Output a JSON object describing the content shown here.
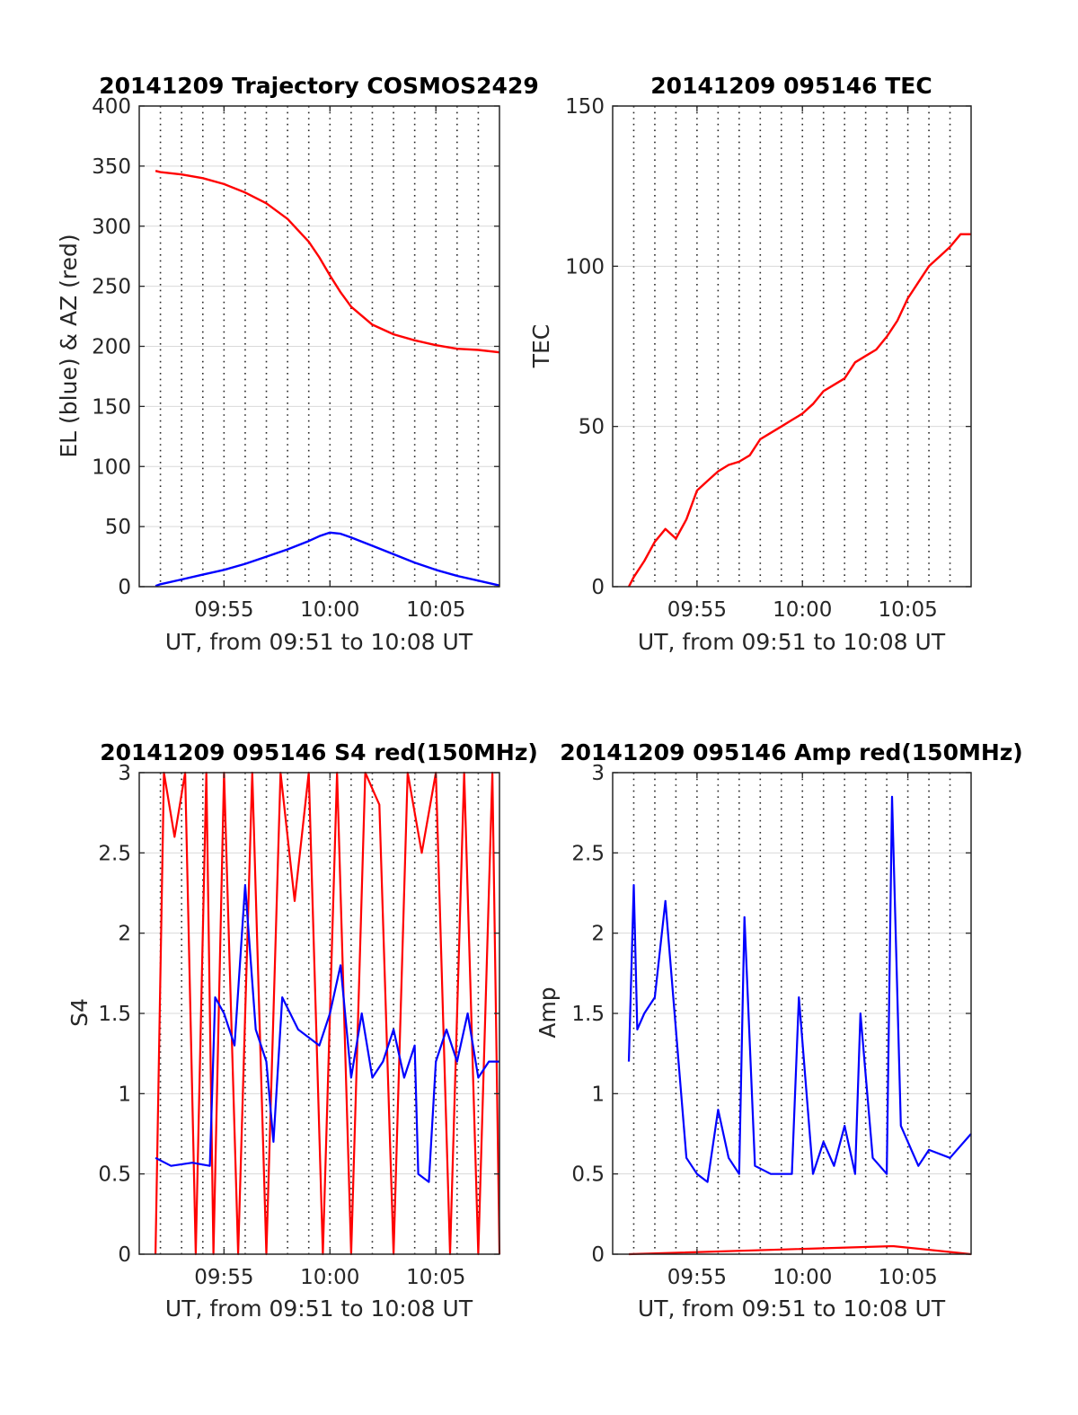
{
  "figure": {
    "background": "#ffffff",
    "colors": {
      "red": "#ff0000",
      "blue": "#0000ff",
      "grid": "#262626",
      "axis": "#262626"
    }
  },
  "chart_data": [
    {
      "id": "trajectory",
      "type": "line",
      "title": "20141209 Trajectory COSMOS2429",
      "xlabel": "UT, from 09:51 to 10:08 UT",
      "ylabel": "EL (blue) & AZ (red)",
      "xlim": [
        "09:51",
        "10:08"
      ],
      "ylim": [
        0,
        400
      ],
      "yticks": [
        0,
        50,
        100,
        150,
        200,
        250,
        300,
        350,
        400
      ],
      "xticks": [
        "09:55",
        "10:00",
        "10:05"
      ],
      "grid": "major solid y, dotted x every minute",
      "legend": "none",
      "series": [
        {
          "color": "#ff0000",
          "x": [
            "09:51:46",
            "09:52",
            "09:53",
            "09:54",
            "09:55",
            "09:56",
            "09:57",
            "09:58",
            "09:59",
            "09:59:30",
            "10:00",
            "10:00:30",
            "10:01",
            "10:02",
            "10:03",
            "10:04",
            "10:05",
            "10:06",
            "10:07",
            "10:08"
          ],
          "y": [
            346,
            345,
            343,
            340,
            335,
            328,
            319,
            306,
            287,
            274,
            259,
            245,
            233,
            218,
            210,
            205,
            201,
            198,
            197,
            195
          ]
        },
        {
          "color": "#0000ff",
          "x": [
            "09:51:46",
            "09:52",
            "09:53",
            "09:54",
            "09:55",
            "09:56",
            "09:57",
            "09:58",
            "09:59",
            "09:59:30",
            "10:00",
            "10:00:30",
            "10:01",
            "10:02",
            "10:03",
            "10:04",
            "10:05",
            "10:06",
            "10:07",
            "10:08"
          ],
          "y": [
            0.5,
            2,
            6,
            10,
            14,
            19,
            25,
            31,
            38,
            42,
            45,
            44,
            41,
            34,
            27,
            20,
            14,
            9,
            5,
            1
          ]
        }
      ]
    },
    {
      "id": "tec",
      "type": "line",
      "title": "20141209 095146 TEC",
      "xlabel": "UT, from 09:51 to 10:08 UT",
      "ylabel": "TEC",
      "xlim": [
        "09:51",
        "10:08"
      ],
      "ylim": [
        0,
        150
      ],
      "yticks": [
        0,
        50,
        100,
        150
      ],
      "xticks": [
        "09:55",
        "10:00",
        "10:05"
      ],
      "grid": "major solid y, dotted x every minute",
      "legend": "none",
      "series": [
        {
          "color": "#ff0000",
          "x": [
            "09:51:46",
            "09:52",
            "09:52:30",
            "09:53",
            "09:53:30",
            "09:54",
            "09:54:30",
            "09:55",
            "09:55:30",
            "09:56",
            "09:56:30",
            "09:57",
            "09:57:30",
            "09:58",
            "09:58:30",
            "09:59",
            "09:59:30",
            "10:00",
            "10:00:30",
            "10:01",
            "10:01:30",
            "10:02",
            "10:02:30",
            "10:03",
            "10:03:30",
            "10:04",
            "10:04:30",
            "10:05",
            "10:05:30",
            "10:06",
            "10:06:30",
            "10:07",
            "10:07:30",
            "10:08"
          ],
          "y": [
            0,
            3,
            8,
            14,
            18,
            15,
            21,
            30,
            33,
            36,
            38,
            39,
            41,
            46,
            48,
            50,
            52,
            54,
            57,
            61,
            63,
            65,
            70,
            72,
            74,
            78,
            83,
            90,
            95,
            100,
            103,
            106,
            110,
            110
          ]
        }
      ]
    },
    {
      "id": "s4",
      "type": "line",
      "title": "20141209 095146 S4 red(150MHz)",
      "xlabel": "UT, from 09:51 to 10:08 UT",
      "ylabel": "S4",
      "xlim": [
        "09:51",
        "10:08"
      ],
      "ylim": [
        0,
        3
      ],
      "yticks": [
        0,
        0.5,
        1,
        1.5,
        2,
        2.5,
        3
      ],
      "xticks": [
        "09:55",
        "10:00",
        "10:05"
      ],
      "grid": "major solid y, dotted x every minute",
      "legend": "none",
      "series": [
        {
          "color": "#ff0000",
          "note_visible": "rapid spikes between 0 and above 3",
          "x": [
            "09:51:46",
            "09:52:10",
            "09:52:40",
            "09:53:10",
            "09:53:40",
            "09:54:10",
            "09:54:30",
            "09:55:00",
            "09:55:40",
            "09:56:20",
            "09:57:00",
            "09:57:40",
            "09:58:20",
            "09:59:00",
            "09:59:40",
            "10:00:20",
            "10:01:00",
            "10:01:40",
            "10:02:20",
            "10:03:00",
            "10:03:40",
            "10:04:20",
            "10:05:00",
            "10:05:40",
            "10:06:20",
            "10:07:00",
            "10:07:40",
            "10:08"
          ],
          "y": [
            0,
            3,
            2.6,
            3,
            0,
            3,
            0,
            3,
            0,
            3,
            0,
            3,
            2.2,
            3,
            0,
            3,
            0,
            3,
            2.8,
            0,
            3,
            2.5,
            3,
            0,
            3,
            0,
            3,
            0
          ]
        },
        {
          "color": "#0000ff",
          "x": [
            "09:51:46",
            "09:52:30",
            "09:53:30",
            "09:54:20",
            "09:54:35",
            "09:55:00",
            "09:55:30",
            "09:56:00",
            "09:56:30",
            "09:57:00",
            "09:57:20",
            "09:57:45",
            "09:58:30",
            "09:59:30",
            "10:00:00",
            "10:00:30",
            "10:01:00",
            "10:01:30",
            "10:02:00",
            "10:02:30",
            "10:03:00",
            "10:03:30",
            "10:04:00",
            "10:04:10",
            "10:04:40",
            "10:05:00",
            "10:05:30",
            "10:06:00",
            "10:06:30",
            "10:07:00",
            "10:07:30",
            "10:08"
          ],
          "y": [
            0.6,
            0.55,
            0.57,
            0.55,
            1.6,
            1.5,
            1.3,
            2.3,
            1.4,
            1.2,
            0.7,
            1.6,
            1.4,
            1.3,
            1.5,
            1.8,
            1.1,
            1.5,
            1.1,
            1.2,
            1.4,
            1.1,
            1.3,
            0.5,
            0.45,
            1.2,
            1.4,
            1.2,
            1.5,
            1.1,
            1.2,
            1.2
          ]
        }
      ]
    },
    {
      "id": "amp",
      "type": "line",
      "title": "20141209 095146 Amp red(150MHz)",
      "xlabel": "UT, from 09:51 to 10:08 UT",
      "ylabel": "Amp",
      "xlim": [
        "09:51",
        "10:08"
      ],
      "ylim": [
        0,
        3
      ],
      "yticks": [
        0,
        0.5,
        1,
        1.5,
        2,
        2.5,
        3
      ],
      "xticks": [
        "09:55",
        "10:00",
        "10:05"
      ],
      "grid": "major solid y, dotted x every minute",
      "legend": "none",
      "series": [
        {
          "color": "#ff0000",
          "x": [
            "09:51:46",
            "10:04:10",
            "10:04:20",
            "10:08"
          ],
          "y": [
            0,
            0.05,
            0.05,
            0
          ]
        },
        {
          "color": "#0000ff",
          "x": [
            "09:51:46",
            "09:52:00",
            "09:52:10",
            "09:52:30",
            "09:53:00",
            "09:53:30",
            "09:54:00",
            "09:54:30",
            "09:55:00",
            "09:55:30",
            "09:56:00",
            "09:56:30",
            "09:57:00",
            "09:57:15",
            "09:57:45",
            "09:58:30",
            "09:59:30",
            "09:59:50",
            "10:00:30",
            "10:01:00",
            "10:01:30",
            "10:02:00",
            "10:02:30",
            "10:02:45",
            "10:03:20",
            "10:04:00",
            "10:04:15",
            "10:04:40",
            "10:05:30",
            "10:06:00",
            "10:07:00",
            "10:08"
          ],
          "y": [
            1.2,
            2.3,
            1.4,
            1.5,
            1.6,
            2.2,
            1.4,
            0.6,
            0.5,
            0.45,
            0.9,
            0.6,
            0.5,
            2.1,
            0.55,
            0.5,
            0.5,
            1.6,
            0.5,
            0.7,
            0.55,
            0.8,
            0.5,
            1.5,
            0.6,
            0.5,
            2.85,
            0.8,
            0.55,
            0.65,
            0.6,
            0.75
          ]
        }
      ]
    }
  ]
}
